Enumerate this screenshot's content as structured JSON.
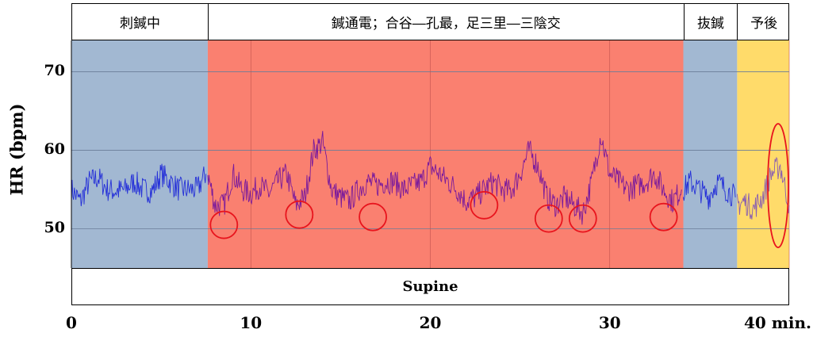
{
  "phases": [
    {
      "label": "刺鍼中",
      "start": 0,
      "end": 7.6,
      "color": "#a2b8d2"
    },
    {
      "label": "鍼通電；合谷―孔最，足三里―三陰交",
      "start": 7.6,
      "end": 34.1,
      "color": "#fa8070"
    },
    {
      "label": "抜鍼",
      "start": 34.1,
      "end": 37.1,
      "color": "#a2b8d2"
    },
    {
      "label": "予後",
      "start": 37.1,
      "end": 40,
      "color": "#ffdb6a"
    }
  ],
  "posture_label": "Supine",
  "chart_data": {
    "type": "line",
    "title": "",
    "xlabel": "",
    "ylabel": "HR (bpm)",
    "xlim": [
      0,
      40
    ],
    "ylim": [
      45,
      74
    ],
    "x_ticks": [
      0,
      10,
      20,
      30,
      40
    ],
    "x_tick_labels": [
      "0",
      "10",
      "20",
      "30",
      "40 min."
    ],
    "y_ticks": [
      50,
      60,
      70
    ],
    "y_tick_labels": [
      "50",
      "60",
      "70"
    ],
    "grid": true,
    "series": [
      {
        "color": "#2530d8",
        "x": [
          0,
          0.5,
          1,
          1.5,
          2,
          2.5,
          3,
          3.5,
          4,
          4.5,
          5,
          5.5,
          6,
          6.5,
          7,
          7.5
        ],
        "y": [
          55,
          53.5,
          56,
          56.5,
          55,
          54.8,
          55,
          56,
          55,
          54.8,
          57,
          56,
          55,
          55,
          55,
          57
        ]
      },
      {
        "color": "#7a1a9c",
        "x": [
          7.6,
          8,
          8.5,
          9,
          9.5,
          10,
          10.5,
          11,
          11.5,
          12,
          12.5,
          13,
          13.5,
          14,
          14.5,
          15,
          15.5,
          16,
          16.5,
          17,
          17.5,
          18,
          18.5,
          19,
          19.5,
          20,
          20.5,
          21,
          21.5,
          22,
          22.5,
          23,
          23.5,
          24,
          24.5,
          25,
          25.5,
          26,
          26.5,
          27,
          27.5,
          28,
          28.5,
          29,
          29.5,
          30,
          30.5,
          31,
          31.5,
          32,
          32.5,
          33,
          33.5,
          34
        ],
        "y": [
          57,
          53,
          53,
          57,
          55,
          54.5,
          55.5,
          54.5,
          56,
          57,
          53,
          54,
          60,
          61,
          55,
          54,
          53.5,
          55,
          56,
          55.5,
          56,
          56,
          55,
          55.5,
          56,
          58,
          57,
          56,
          55,
          53.5,
          54,
          55,
          56,
          55,
          54.8,
          57,
          60,
          58,
          54,
          53,
          54,
          53,
          52,
          56,
          62,
          57,
          56,
          55,
          55.5,
          56,
          57,
          55,
          53.5,
          55
        ]
      },
      {
        "color": "#2530d8",
        "x": [
          34.1,
          34.5,
          35,
          35.5,
          36,
          36.5,
          37
        ],
        "y": [
          55,
          56,
          55,
          54,
          56,
          55,
          54
        ]
      },
      {
        "color": "#8a60b0",
        "x": [
          37.1,
          37.5,
          38,
          38.5,
          39,
          39.5,
          40
        ],
        "y": [
          53,
          53.5,
          52.5,
          54,
          57,
          58,
          53
        ]
      }
    ]
  },
  "markers": [
    {
      "x": 8.5,
      "y": 50.5
    },
    {
      "x": 12.7,
      "y": 51.8
    },
    {
      "x": 16.8,
      "y": 51.5
    },
    {
      "x": 23,
      "y": 53
    },
    {
      "x": 26.6,
      "y": 51.3
    },
    {
      "x": 28.5,
      "y": 51.3
    },
    {
      "x": 33,
      "y": 51.5
    },
    {
      "x": 40,
      "y": 55.5,
      "tall": true
    }
  ],
  "marker_color": "#e8141d"
}
